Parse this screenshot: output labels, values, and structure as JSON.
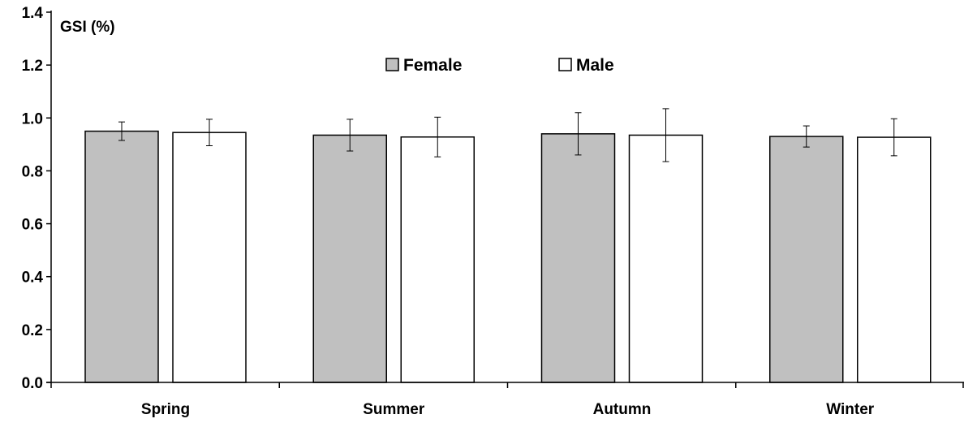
{
  "chart_data": {
    "type": "bar",
    "ylabel": "GSI (%)",
    "xlabel": "",
    "categories": [
      "Spring",
      "Summer",
      "Autumn",
      "Winter"
    ],
    "ylim": [
      0,
      1.4
    ],
    "yticks": [
      "0.0",
      "0.2",
      "0.4",
      "0.6",
      "0.8",
      "1.0",
      "1.2",
      "1.4"
    ],
    "grid": false,
    "legend_position": "top-center",
    "series": [
      {
        "name": "Female",
        "color": "#c0c0c0",
        "values": [
          0.95,
          0.935,
          0.94,
          0.93
        ],
        "errors": [
          0.035,
          0.06,
          0.08,
          0.04
        ]
      },
      {
        "name": "Male",
        "color": "#ffffff",
        "values": [
          0.945,
          0.928,
          0.935,
          0.927
        ],
        "errors": [
          0.05,
          0.075,
          0.1,
          0.07
        ]
      }
    ]
  }
}
